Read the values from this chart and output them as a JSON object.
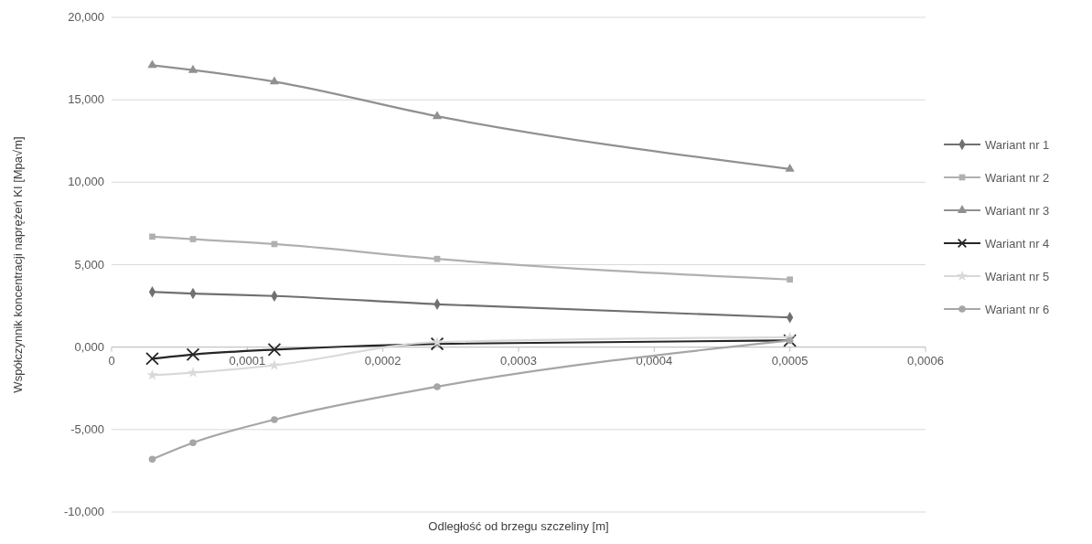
{
  "chart_data": {
    "type": "line",
    "xlabel": "Odległość od brzegu szczeliny [m]",
    "ylabel": "Współczynnik koncentracji naprężeń KI  [Mpa√m]",
    "x": [
      3e-05,
      6e-05,
      0.00012,
      0.00024,
      0.0005
    ],
    "xlim": [
      0,
      0.0006
    ],
    "xticks": [
      0,
      {
        "value": 0.0001,
        "label": "0,0001"
      },
      {
        "value": 0.0002,
        "label": "0,0002"
      },
      {
        "value": 0.0003,
        "label": "0,0003"
      },
      {
        "value": 0.0004,
        "label": "0,0004"
      },
      {
        "value": 0.0005,
        "label": "0,0005"
      },
      {
        "value": 0.0006,
        "label": "0,0006"
      }
    ],
    "ylim": [
      -10,
      20
    ],
    "yticks": [
      {
        "value": -10,
        "label": "-10,000"
      },
      {
        "value": -5,
        "label": "-5,000"
      },
      {
        "value": 0,
        "label": "0,000"
      },
      {
        "value": 5,
        "label": "5,000"
      },
      {
        "value": 10,
        "label": "10,000"
      },
      {
        "value": 15,
        "label": "15,000"
      },
      {
        "value": 20,
        "label": "20,000"
      }
    ],
    "grid": "y",
    "legend": "right",
    "series": [
      {
        "name": "Wariant nr 1",
        "color": "#707070",
        "marker": "diamond",
        "values": [
          3.35,
          3.25,
          3.1,
          2.6,
          1.8
        ]
      },
      {
        "name": "Wariant nr 2",
        "color": "#b0b0b0",
        "marker": "square",
        "values": [
          6.7,
          6.55,
          6.25,
          5.35,
          4.1
        ]
      },
      {
        "name": "Wariant nr 3",
        "color": "#909090",
        "marker": "triangle",
        "values": [
          17.1,
          16.8,
          16.1,
          14.0,
          10.8
        ]
      },
      {
        "name": "Wariant nr 4",
        "color": "#262626",
        "marker": "cross",
        "values": [
          -0.7,
          -0.45,
          -0.15,
          0.2,
          0.4
        ]
      },
      {
        "name": "Wariant nr 5",
        "color": "#d9d9d9",
        "marker": "star",
        "values": [
          -1.7,
          -1.55,
          -1.1,
          0.3,
          0.6
        ]
      },
      {
        "name": "Wariant nr 6",
        "color": "#a6a6a6",
        "marker": "circle",
        "values": [
          -6.8,
          -5.8,
          -4.4,
          -2.4,
          0.4
        ]
      }
    ]
  }
}
